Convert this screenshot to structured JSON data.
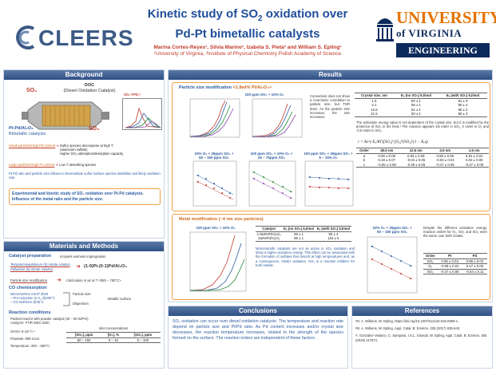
{
  "header": {
    "logo_left": "CLEERS",
    "title_line1": "Kinetic study of SO",
    "title_sub": "2",
    "title_line1_end": " oxidation over",
    "title_line2": "Pd-Pt bimetallic catalysts",
    "authors": "Marina Cortes-Reyes¹, Silvia Marino¹, Izabela S. Pieta² and William S. Epling¹",
    "affiliations": "¹University of Virginia, ²Institute of Physical Chemistry Polish Academy of Science",
    "uva_line1": "UNIVERSITY",
    "uva_line2": "of VIRGINIA",
    "uva_line3": "ENGINEERING"
  },
  "background": {
    "heading": "Background",
    "doc_label": "DOC",
    "doc_sub": "(Diesel Oxidation Catalyst)",
    "so2_in": "SO₂",
    "so3_out": "SO₃",
    "so3tpd": "SO₃-TPD¹,²",
    "ptpd_label": "Pt-Pd/Al₂O₃",
    "ptpd_sub": "Bimetallic catalysts",
    "small_particles": "Small particles/High Pd content",
    "small_effects": [
      "Sulfur species decompose at high T",
      "(aluminum sulfate)",
      "Higher SO₂ adsorption/desorption capacity"
    ],
    "large_particles": "Large particles/High Pt content",
    "large_effects": [
      "Low T desorbing species"
    ],
    "note": "Pt:Pd ratio and particle size influence intermediate sulfur surface species stabilities and likely oxidation rate.",
    "goal": "Experimental and kinetic study of SO₂ oxidation over Pt-Pd catalysts. Influence of the metal ratio and the particle size."
  },
  "methods": {
    "heading": "Materials and Methods",
    "catalyst_prep": "Catalyst preparation",
    "incipient": "Incipient wetness impregnation",
    "tetraammine": "Tetraammineplatinum (II) nitrate solution",
    "palladium": "Palladium (II) nitrate solution",
    "formula": "(1-0)Pt-(0-1)Pd/Al₂O₃",
    "psize_mod": "Particle size modification",
    "calcination": "Calcination in air at T <550 – 750°C>",
    "co_chemi": "CO chemisorption",
    "co_lines": [
      "Micromeritics ASAP 2020",
      "– Pre-reduction in H₂ @400°C",
      "– CO isotherm @35°C"
    ],
    "particle_size": "Particle size",
    "dispersion": "Dispersion",
    "metallic_surface": "Metallic surface",
    "reaction_cond": "Reaction conditions",
    "reaction_lines": [
      "Packed reactor with powder catalyst (40 – 60 W/Pm)",
      "Analyzer: FTIR MKS 2030"
    ],
    "ghsv": "GHSV: 8·10⁵ h⁻¹",
    "flowrate": "Flowrate: 800 sccm",
    "temperature": "Temperature: 200 – 550°C",
    "inlet_title": "Inlet concentrations",
    "inlet_headers": [
      "[SO₂], ppm",
      "[O₂], %",
      "[SO₃], ppm"
    ],
    "inlet_values": [
      "50 – 150",
      "5 – 15",
      "0 – 100"
    ]
  },
  "results": {
    "heading": "Results",
    "psize_title": "Particle size modification",
    "psize_sub": "<1.8wt% Pt/Al₂O₃>",
    "top_plot_title": "100 ppm SO₂ + 10% O₂",
    "conversion_note": "Conversion does not show a monotonic correlation to particle size, but TOR does. As the particle size increases, the rate increases.",
    "crystal_headers": [
      "Crystal size, nm",
      "Eₐ (no SO₃) kJ/mol",
      "Eₐ (with SO₃) kJ/mol"
    ],
    "crystal_rows": [
      [
        "1.5",
        "60 ± 1",
        "81 ± 9"
      ],
      [
        "4.1",
        "59 ± 1",
        "80 ± 4"
      ],
      [
        "12.6",
        "61 ± 1",
        "95 ± 2"
      ],
      [
        "41.5",
        "60 ± 1",
        "90 ± 4"
      ]
    ],
    "activation_note": "The activation energy value is not dependent of the crystal size, but it is modified by the presence of SO₃ in the feed.³ The reaction appears 1st order in SO₂, 0 order in O₂ and -0.5 order in SO₃.",
    "rate_eq": "r = Ae^(-Eₐ/RT)[SO₂]ᵃ[O₂]ᵇ[SO₃]ᶜ(1 − Kₑq)",
    "order_headers": [
      "Order",
      "45.5 nm",
      "12.6 nm",
      "4.5 nm",
      "1.6 nm"
    ],
    "order_rows": [
      [
        "a",
        "0.90 ± 0.08",
        "0.93 ± 0.09",
        "0.89 ± 0.05",
        "0.91 ± 0.02"
      ],
      [
        "b",
        "0.18 ± 0.07",
        "-0.04 ± 0.05",
        "-0.03 ± 0.01",
        "0.02 ± 0.05"
      ],
      [
        "c",
        "-0.56 ± 0.08",
        "-0.49 ± 0.09",
        "-0.47 ± 0.08",
        "-0.47 ± 0.09"
      ]
    ],
    "small_plots": [
      {
        "line1": "10% O₂ + 25ppm SO₂ +",
        "line2": "50 – 150 ppm SO₂"
      },
      {
        "line1": "100 ppm SO₂ + 10% O₂ +",
        "line2": "25 – 75ppm SO₃"
      },
      {
        "line1": "100 ppm SO₂ + 25ppm SO₃ +",
        "line2": "5 – 15% O₂"
      }
    ],
    "metal_title": "Metal modification (~4 nm size particles)",
    "metal_plot_title": "100 ppm SO₂ + 10% O₂",
    "metal_headers": [
      "Catalyst",
      "Eₐ (no SO₃) kJ/mol",
      "Eₐ (with SO₃) kJ/mol"
    ],
    "metal_rows": [
      [
        "1.8wt%Pt/Al₂O₃",
        "59 ± 1",
        "80 ± 4"
      ],
      [
        "1wt%Pd/Al₂O₃",
        "95 ± 1",
        "115 ± 6"
      ]
    ],
    "metal_note": "Monometallic catalysts are not as active in SO₂ oxidation and show a higher activation energy. This effect can be associated with the formation of sulfates that desorb at high temperatures and, as a consequence, hinder oxidation. SO₃ is a reaction inhibitor for both metals.",
    "metal_plot2_line1": "10% O₂ + 25ppm SO₃ +",
    "metal_plot2_line2": "50 – 150 ppm SO₂",
    "different_note": "Despite the different activation energy, reaction orders for O₂, SO₂ and SO₃ were the same over both metals.",
    "order2_headers": [
      "Order",
      "Pt",
      "Pd"
    ],
    "order2_rows": [
      [
        "SO₂",
        "0.89 ± 0.03",
        "0.88 ± 0.02"
      ],
      [
        "O₂",
        "-0.08 ± 0.01",
        "0.17 ± 0.03"
      ],
      [
        "SO₃",
        "-0.47 ± 0.08",
        "-0.54 ± 0.11"
      ]
    ]
  },
  "conclusions": {
    "heading": "Conclusions",
    "text": "SO₂ oxidation can occur over diesel oxidation catalysts. The temperature and reaction rate depend on particle size and Pt/Pd ratio. As Pd content increases and/or crystal size decreases, the reaction temperature increases, related to the strength of the species formed on the surface. The reaction orders are independent of these factors."
  },
  "references": {
    "heading": "References",
    "items": [
      "¹M. A. Wilkens, W. Epling, https://doi.org/10.1007/s11244-016-0669-x.",
      "²M. A. Wilkens, W. Epling, Appl. Catal. B: Environ. 238 (2017) 635-643.",
      "³I. Gonzalez-Velasco, C. Sampara, I.S.L. Girasoli, W. Epling, Appl. Catal. B: Environ. 256 (2019) 117874."
    ]
  },
  "colors": {
    "header_blue": "#1f4e9a",
    "accent_red": "#c0392b",
    "orange": "#e57200",
    "navy": "#0d2a5c",
    "section_blue": "#2f5085"
  }
}
